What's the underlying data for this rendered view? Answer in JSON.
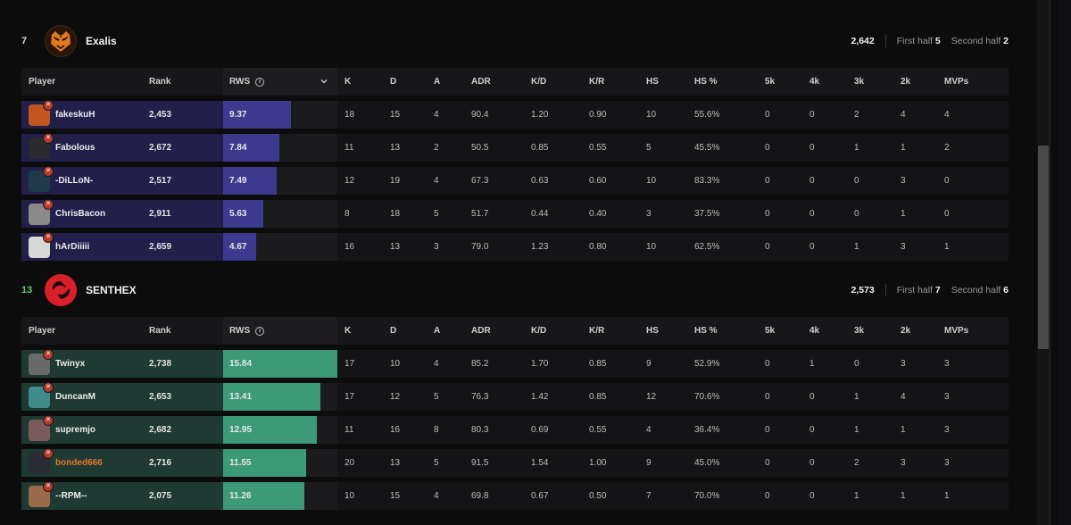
{
  "team1": {
    "place": "7",
    "name": "Exalis",
    "elo": "2,642",
    "first_half_label": "First half",
    "first_half": "5",
    "second_half_label": "Second half",
    "second_half": "2",
    "place_color": "#d9d9d9",
    "bar_color": "#3b3a8f",
    "row_tint": "#221f4a",
    "headers": [
      "Player",
      "Rank",
      "RWS",
      "K",
      "D",
      "A",
      "ADR",
      "K/D",
      "K/R",
      "HS",
      "HS %",
      "5k",
      "4k",
      "3k",
      "2k",
      "MVPs"
    ],
    "players": [
      {
        "name": "fakeskuH",
        "rank": "2,453",
        "rws": "9.37",
        "rws_frac": 0.59,
        "k": "18",
        "d": "15",
        "a": "4",
        "adr": "90.4",
        "kd": "1.20",
        "kr": "0.90",
        "hs": "10",
        "hsp": "55.6%",
        "k5": "0",
        "k4": "0",
        "k3": "2",
        "k2": "4",
        "mvps": "4",
        "avatar": "#c2561e"
      },
      {
        "name": "Fabolous",
        "rank": "2,672",
        "rws": "7.84",
        "rws_frac": 0.49,
        "k": "11",
        "d": "13",
        "a": "2",
        "adr": "50.5",
        "kd": "0.85",
        "kr": "0.55",
        "hs": "5",
        "hsp": "45.5%",
        "k5": "0",
        "k4": "0",
        "k3": "1",
        "k2": "1",
        "mvps": "2",
        "avatar": "#2a2a2e"
      },
      {
        "name": "-DiLLoN-",
        "rank": "2,517",
        "rws": "7.49",
        "rws_frac": 0.47,
        "k": "12",
        "d": "19",
        "a": "4",
        "adr": "67.3",
        "kd": "0.63",
        "kr": "0.60",
        "hs": "10",
        "hsp": "83.3%",
        "k5": "0",
        "k4": "0",
        "k3": "0",
        "k2": "3",
        "mvps": "0",
        "avatar": "#1f3a4a"
      },
      {
        "name": "ChrisBacon",
        "rank": "2,911",
        "rws": "5.63",
        "rws_frac": 0.35,
        "k": "8",
        "d": "18",
        "a": "5",
        "adr": "51.7",
        "kd": "0.44",
        "kr": "0.40",
        "hs": "3",
        "hsp": "37.5%",
        "k5": "0",
        "k4": "0",
        "k3": "0",
        "k2": "1",
        "mvps": "0",
        "avatar": "#8a8a8a"
      },
      {
        "name": "hArDiiiii",
        "rank": "2,659",
        "rws": "4.67",
        "rws_frac": 0.29,
        "k": "16",
        "d": "13",
        "a": "3",
        "adr": "79.0",
        "kd": "1.23",
        "kr": "0.80",
        "hs": "10",
        "hsp": "62.5%",
        "k5": "0",
        "k4": "0",
        "k3": "1",
        "k2": "3",
        "mvps": "1",
        "avatar": "#d8d8d8"
      }
    ]
  },
  "team2": {
    "place": "13",
    "name": "SENTHEX",
    "elo": "2,573",
    "first_half_label": "First half",
    "first_half": "7",
    "second_half_label": "Second half",
    "second_half": "6",
    "place_color": "#5ec86a",
    "bar_color": "#3d9a78",
    "row_tint": "#1e3a32",
    "headers": [
      "Player",
      "Rank",
      "RWS",
      "K",
      "D",
      "A",
      "ADR",
      "K/D",
      "K/R",
      "HS",
      "HS %",
      "5k",
      "4k",
      "3k",
      "2k",
      "MVPs"
    ],
    "players": [
      {
        "name": "Twinyx",
        "rank": "2,738",
        "rws": "15.84",
        "rws_frac": 1.0,
        "k": "17",
        "d": "10",
        "a": "4",
        "adr": "85.2",
        "kd": "1.70",
        "kr": "0.85",
        "hs": "9",
        "hsp": "52.9%",
        "k5": "0",
        "k4": "1",
        "k3": "0",
        "k2": "3",
        "mvps": "3",
        "avatar": "#6a6a6a"
      },
      {
        "name": "DuncanM",
        "rank": "2,653",
        "rws": "13.41",
        "rws_frac": 0.85,
        "k": "17",
        "d": "12",
        "a": "5",
        "adr": "76.3",
        "kd": "1.42",
        "kr": "0.85",
        "hs": "12",
        "hsp": "70.6%",
        "k5": "0",
        "k4": "0",
        "k3": "1",
        "k2": "4",
        "mvps": "3",
        "avatar": "#3f8c8c"
      },
      {
        "name": "supremjo",
        "rank": "2,682",
        "rws": "12.95",
        "rws_frac": 0.82,
        "k": "11",
        "d": "16",
        "a": "8",
        "adr": "80.3",
        "kd": "0.69",
        "kr": "0.55",
        "hs": "4",
        "hsp": "36.4%",
        "k5": "0",
        "k4": "0",
        "k3": "1",
        "k2": "1",
        "mvps": "3",
        "avatar": "#7a5a5a"
      },
      {
        "name": "bonded666",
        "rank": "2,716",
        "rws": "11.55",
        "rws_frac": 0.73,
        "k": "20",
        "d": "13",
        "a": "5",
        "adr": "91.5",
        "kd": "1.54",
        "kr": "1.00",
        "hs": "9",
        "hsp": "45.0%",
        "k5": "0",
        "k4": "0",
        "k3": "2",
        "k2": "3",
        "mvps": "3",
        "avatar": "#2c2c34",
        "highlight": true
      },
      {
        "name": "--RPM--",
        "rank": "2,075",
        "rws": "11.26",
        "rws_frac": 0.71,
        "k": "10",
        "d": "15",
        "a": "4",
        "adr": "69.8",
        "kd": "0.67",
        "kr": "0.50",
        "hs": "7",
        "hsp": "70.0%",
        "k5": "0",
        "k4": "0",
        "k3": "1",
        "k2": "1",
        "mvps": "1",
        "avatar": "#9a6a4a"
      }
    ]
  }
}
